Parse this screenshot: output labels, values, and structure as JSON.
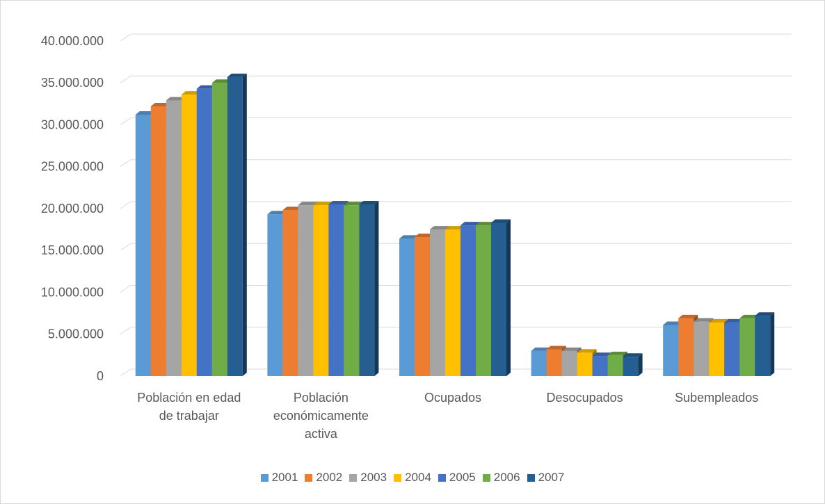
{
  "chart_data": {
    "type": "bar3d",
    "categories": [
      "Población en edad de trabajar",
      "Población económicamente activa",
      "Ocupados",
      "Desocupados",
      "Subempleados"
    ],
    "series": [
      {
        "name": "2001",
        "color": "#5b9bd5",
        "values": [
          31200000,
          19300000,
          16400000,
          3000000,
          6100000
        ]
      },
      {
        "name": "2002",
        "color": "#ed7d31",
        "values": [
          32200000,
          19800000,
          16600000,
          3200000,
          6900000
        ]
      },
      {
        "name": "2003",
        "color": "#a5a5a5",
        "values": [
          32900000,
          20400000,
          17500000,
          3000000,
          6500000
        ]
      },
      {
        "name": "2004",
        "color": "#ffc000",
        "values": [
          33600000,
          20400000,
          17500000,
          2800000,
          6400000
        ]
      },
      {
        "name": "2005",
        "color": "#4472c4",
        "values": [
          34300000,
          20500000,
          18000000,
          2400000,
          6400000
        ]
      },
      {
        "name": "2006",
        "color": "#70ad47",
        "values": [
          35000000,
          20400000,
          18000000,
          2500000,
          6900000
        ]
      },
      {
        "name": "2007",
        "color": "#255e91",
        "values": [
          35700000,
          20500000,
          18300000,
          2300000,
          7200000
        ]
      }
    ],
    "ylim": [
      0,
      40000000
    ],
    "yticks": [
      0,
      {
        "value": 5000000,
        "label": "5.000.000"
      },
      {
        "value": 10000000,
        "label": "10.000.000"
      },
      {
        "value": 15000000,
        "label": "15.000.000"
      },
      {
        "value": 20000000,
        "label": "20.000.000"
      },
      {
        "value": 25000000,
        "label": "25.000.000"
      },
      {
        "value": 30000000,
        "label": "30.000.000"
      },
      {
        "value": 35000000,
        "label": "35.000.000"
      },
      {
        "value": 40000000,
        "label": "40.000.000"
      }
    ],
    "grid": true,
    "legend": "bottom"
  }
}
